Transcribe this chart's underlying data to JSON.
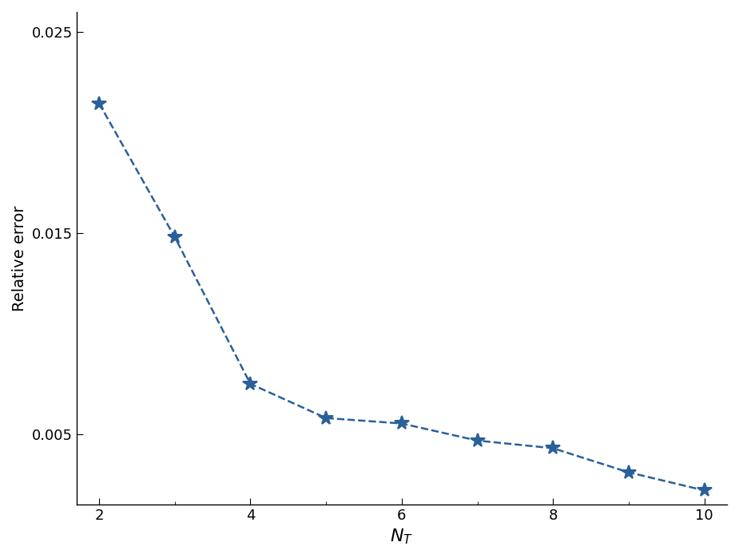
{
  "x": [
    2,
    3,
    4,
    5,
    6,
    7,
    8,
    9,
    10
  ],
  "y": [
    0.02145,
    0.0148,
    0.0075,
    0.0058,
    0.00553,
    0.00468,
    0.0043,
    0.0031,
    0.0022
  ],
  "line_color": "#2a6099",
  "marker": "*",
  "marker_size": 13,
  "line_style": "--",
  "line_width": 1.8,
  "xlabel": "$N_T$",
  "ylabel": "Relative error",
  "xlim": [
    1.7,
    10.3
  ],
  "ylim": [
    0.0015,
    0.026
  ],
  "xticks": [
    2,
    4,
    6,
    8,
    10
  ],
  "yticks": [
    0.005,
    0.015,
    0.025
  ],
  "xlabel_fontsize": 16,
  "ylabel_fontsize": 14,
  "tick_fontsize": 13,
  "background_color": "#ffffff"
}
